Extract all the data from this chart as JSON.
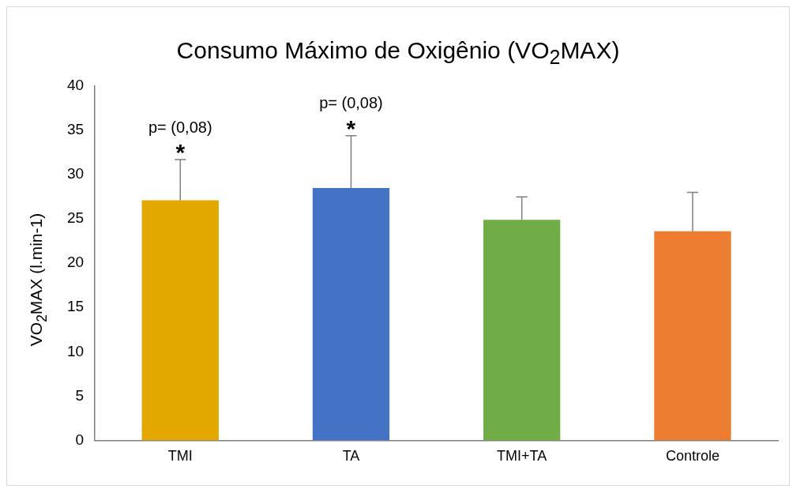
{
  "chart_data": {
    "type": "bar",
    "title": "Consumo Máximo de Oxigênio (VO$_{2}$MAX)",
    "ylabel": "VO$_{2}$MAX (l.min-1)",
    "categories": [
      "TMI",
      "TA",
      "TMI+TA",
      "Controle"
    ],
    "values": [
      27.1,
      28.5,
      24.9,
      23.6
    ],
    "colors": [
      "#e2a800",
      "#4472c4",
      "#70ad47",
      "#ed7d31"
    ],
    "errors": [
      [
        27.1,
        31.7
      ],
      [
        28.5,
        34.4
      ],
      [
        24.9,
        27.5
      ],
      [
        23.6,
        28.0
      ]
    ],
    "ylim": [
      0,
      40
    ],
    "yticks": [
      0,
      5,
      10,
      15,
      20,
      25,
      30,
      35,
      40
    ],
    "grid": false,
    "legend": false,
    "annotations": [
      "*",
      "p= (0,08)",
      "*",
      "p= (0,08)"
    ]
  }
}
